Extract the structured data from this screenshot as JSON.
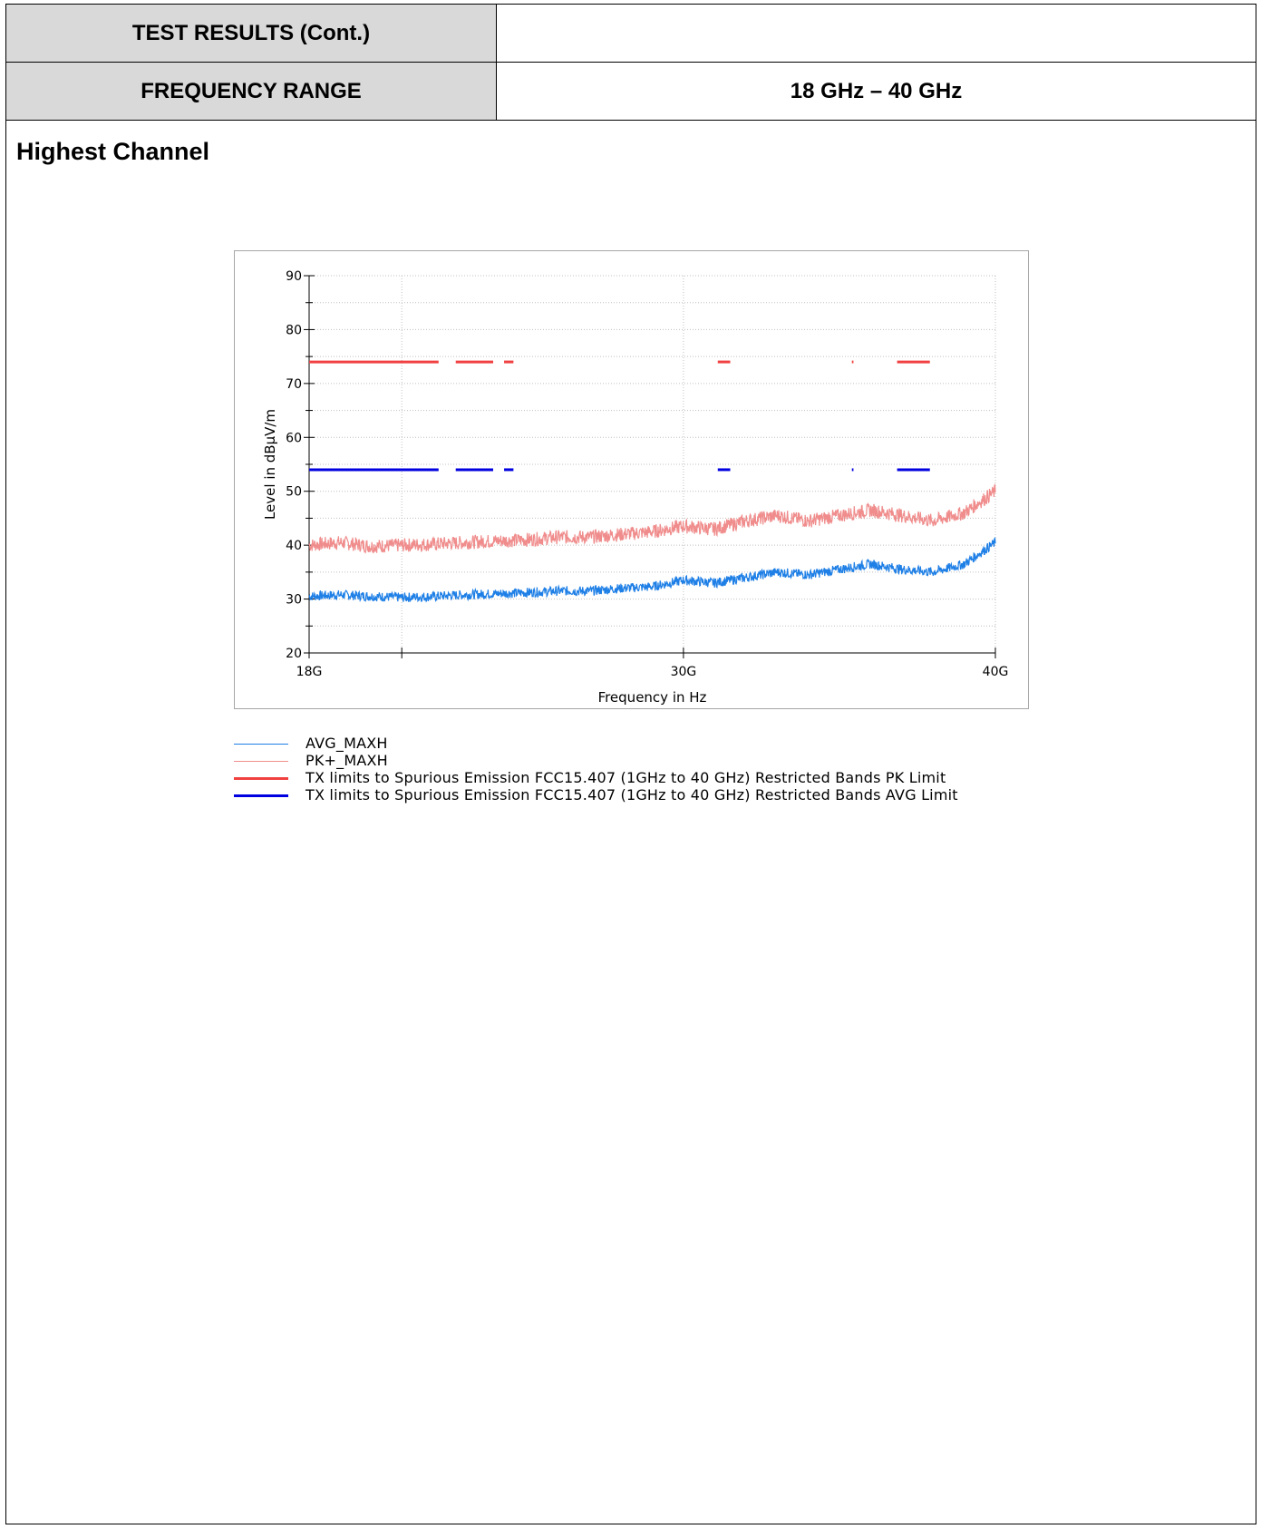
{
  "header": {
    "row1_label": "TEST RESULTS (Cont.)",
    "row1_value": "",
    "row2_label": "FREQUENCY RANGE",
    "row2_value": "18 GHz – 40 GHz"
  },
  "section_title": "Highest Channel",
  "colors": {
    "avg": "#1e7fe6",
    "pk": "#f08c8c",
    "pk_limit": "#f04040",
    "avg_limit": "#0000e0",
    "grid": "#c0c0c0"
  },
  "chart_data": {
    "type": "line",
    "xlabel": "Frequency in Hz",
    "ylabel": "Level in dBµV/m",
    "x_unit": "GHz",
    "xlim": [
      18,
      40
    ],
    "ylim": [
      20,
      90
    ],
    "x_ticks": [
      {
        "value": 18,
        "label": "18G"
      },
      {
        "value": 30,
        "label": "30G"
      },
      {
        "value": 40,
        "label": "40G"
      }
    ],
    "y_ticks": [
      20,
      30,
      40,
      50,
      60,
      70,
      80,
      90
    ],
    "grid": true,
    "series": [
      {
        "name": "AVG_MAXH",
        "x": [
          18,
          19,
          20,
          21,
          22,
          23,
          24,
          25,
          26,
          27,
          28,
          29,
          30,
          31,
          32,
          33,
          34,
          35,
          36,
          37,
          38,
          39,
          40
        ],
        "values": [
          30.5,
          30.8,
          30.5,
          30.3,
          30.5,
          30.8,
          31.0,
          31.2,
          31.5,
          31.5,
          32.0,
          32.3,
          33.5,
          33.0,
          34.0,
          35.0,
          34.5,
          35.5,
          36.5,
          35.5,
          35.0,
          36.5,
          40.5
        ]
      },
      {
        "name": "PK+_MAXH",
        "x": [
          18,
          19,
          20,
          21,
          22,
          23,
          24,
          25,
          26,
          27,
          28,
          29,
          30,
          31,
          32,
          33,
          34,
          35,
          36,
          37,
          38,
          39,
          40
        ],
        "values": [
          40.0,
          40.5,
          39.8,
          40.0,
          40.2,
          40.5,
          40.8,
          41.0,
          41.5,
          41.5,
          42.0,
          42.5,
          43.5,
          43.0,
          44.5,
          45.5,
          44.5,
          45.5,
          46.5,
          45.5,
          44.5,
          46.0,
          50.0
        ]
      },
      {
        "name": "TX limits to Spurious Emission FCC15.407 (1GHz to 40 GHz) Restricted Bands PK Limit",
        "value": 74,
        "segments": [
          [
            18,
            22.15
          ],
          [
            22.7,
            23.9
          ],
          [
            24.25,
            24.55
          ],
          [
            31.1,
            31.5
          ],
          [
            35.4,
            35.45
          ],
          [
            36.85,
            37.9
          ]
        ]
      },
      {
        "name": "TX limits to Spurious Emission FCC15.407 (1GHz to 40 GHz) Restricted Bands AVG Limit",
        "value": 54,
        "segments": [
          [
            18,
            22.15
          ],
          [
            22.7,
            23.9
          ],
          [
            24.25,
            24.55
          ],
          [
            31.1,
            31.5
          ],
          [
            35.4,
            35.45
          ],
          [
            36.85,
            37.9
          ]
        ]
      }
    ]
  },
  "legend": [
    {
      "label": "AVG_MAXH",
      "color": "#1e7fe6",
      "width": 1
    },
    {
      "label": "PK+_MAXH",
      "color": "#f08c8c",
      "width": 1
    },
    {
      "label": "TX limits to Spurious Emission FCC15.407 (1GHz to 40 GHz) Restricted Bands PK Limit",
      "color": "#f04040",
      "width": 3
    },
    {
      "label": "TX limits to Spurious Emission FCC15.407 (1GHz to 40 GHz) Restricted Bands AVG Limit",
      "color": "#0000e0",
      "width": 3
    }
  ]
}
